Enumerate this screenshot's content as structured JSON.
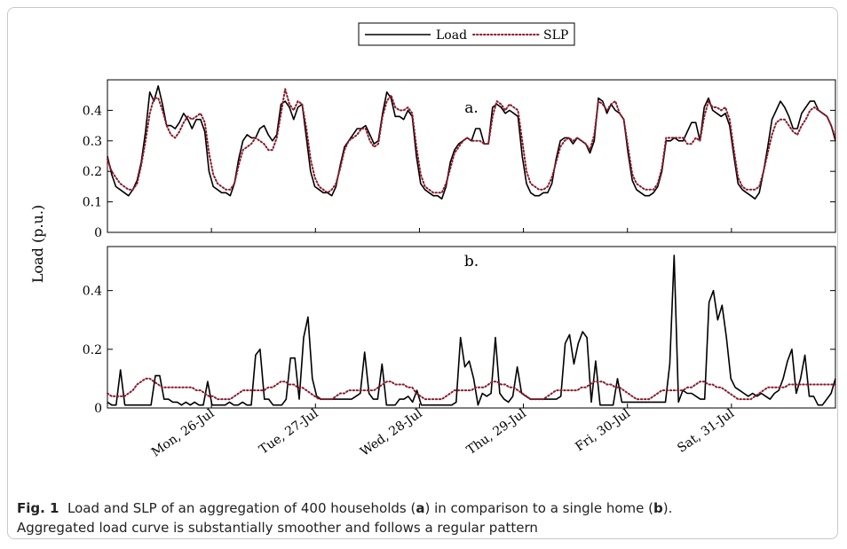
{
  "chart_data": [
    {
      "type": "line",
      "panel_label": "a.",
      "ylim": [
        0,
        0.5
      ],
      "yticks": [
        0,
        0.1,
        0.2,
        0.3,
        0.4
      ],
      "legend": {
        "placement": "top-center",
        "entries": [
          "Load",
          "SLP"
        ]
      },
      "series": [
        {
          "name": "Load",
          "style": "solid",
          "color": "#000000",
          "values": [
            0.25,
            0.19,
            0.15,
            0.14,
            0.13,
            0.12,
            0.14,
            0.17,
            0.23,
            0.33,
            0.46,
            0.43,
            0.48,
            0.42,
            0.35,
            0.35,
            0.34,
            0.36,
            0.39,
            0.37,
            0.34,
            0.37,
            0.37,
            0.33,
            0.2,
            0.15,
            0.14,
            0.13,
            0.13,
            0.12,
            0.16,
            0.24,
            0.3,
            0.32,
            0.31,
            0.31,
            0.34,
            0.35,
            0.32,
            0.3,
            0.32,
            0.42,
            0.43,
            0.41,
            0.37,
            0.41,
            0.42,
            0.31,
            0.2,
            0.15,
            0.14,
            0.13,
            0.13,
            0.12,
            0.15,
            0.22,
            0.28,
            0.3,
            0.32,
            0.34,
            0.34,
            0.35,
            0.32,
            0.29,
            0.3,
            0.39,
            0.46,
            0.44,
            0.38,
            0.38,
            0.37,
            0.4,
            0.38,
            0.25,
            0.16,
            0.14,
            0.13,
            0.12,
            0.12,
            0.11,
            0.15,
            0.23,
            0.27,
            0.29,
            0.3,
            0.31,
            0.3,
            0.34,
            0.34,
            0.29,
            0.29,
            0.41,
            0.42,
            0.41,
            0.39,
            0.4,
            0.39,
            0.38,
            0.25,
            0.16,
            0.13,
            0.12,
            0.12,
            0.13,
            0.13,
            0.16,
            0.24,
            0.3,
            0.31,
            0.31,
            0.29,
            0.31,
            0.3,
            0.29,
            0.26,
            0.3,
            0.44,
            0.43,
            0.39,
            0.42,
            0.4,
            0.39,
            0.37,
            0.26,
            0.17,
            0.14,
            0.13,
            0.12,
            0.12,
            0.13,
            0.15,
            0.2,
            0.3,
            0.3,
            0.31,
            0.3,
            0.3,
            0.33,
            0.36,
            0.36,
            0.3,
            0.41,
            0.44,
            0.4,
            0.39,
            0.38,
            0.39,
            0.35,
            0.25,
            0.16,
            0.14,
            0.13,
            0.12,
            0.11,
            0.13,
            0.2,
            0.28,
            0.37,
            0.4,
            0.43,
            0.41,
            0.38,
            0.34,
            0.34,
            0.39,
            0.41,
            0.43,
            0.43,
            0.4,
            0.39,
            0.38,
            0.35,
            0.3
          ]
        },
        {
          "name": "SLP",
          "style": "dotted",
          "color": "#8b1a2a",
          "values": [
            0.24,
            0.2,
            0.18,
            0.16,
            0.15,
            0.14,
            0.14,
            0.16,
            0.22,
            0.3,
            0.39,
            0.44,
            0.44,
            0.4,
            0.35,
            0.32,
            0.31,
            0.33,
            0.36,
            0.38,
            0.37,
            0.38,
            0.39,
            0.36,
            0.26,
            0.19,
            0.16,
            0.15,
            0.14,
            0.14,
            0.16,
            0.22,
            0.27,
            0.28,
            0.29,
            0.31,
            0.3,
            0.29,
            0.27,
            0.27,
            0.31,
            0.39,
            0.47,
            0.42,
            0.4,
            0.43,
            0.42,
            0.34,
            0.24,
            0.18,
            0.15,
            0.14,
            0.13,
            0.14,
            0.16,
            0.21,
            0.27,
            0.3,
            0.31,
            0.32,
            0.34,
            0.34,
            0.3,
            0.28,
            0.29,
            0.38,
            0.43,
            0.45,
            0.41,
            0.4,
            0.4,
            0.41,
            0.39,
            0.28,
            0.19,
            0.15,
            0.14,
            0.13,
            0.13,
            0.13,
            0.16,
            0.21,
            0.26,
            0.28,
            0.3,
            0.31,
            0.3,
            0.3,
            0.3,
            0.29,
            0.29,
            0.38,
            0.43,
            0.42,
            0.4,
            0.42,
            0.41,
            0.4,
            0.3,
            0.2,
            0.16,
            0.15,
            0.14,
            0.14,
            0.15,
            0.18,
            0.23,
            0.28,
            0.3,
            0.31,
            0.3,
            0.31,
            0.3,
            0.29,
            0.27,
            0.32,
            0.43,
            0.42,
            0.4,
            0.42,
            0.43,
            0.39,
            0.37,
            0.28,
            0.19,
            0.16,
            0.15,
            0.14,
            0.14,
            0.14,
            0.16,
            0.21,
            0.31,
            0.31,
            0.31,
            0.31,
            0.31,
            0.29,
            0.29,
            0.31,
            0.3,
            0.38,
            0.43,
            0.41,
            0.41,
            0.4,
            0.41,
            0.37,
            0.27,
            0.18,
            0.15,
            0.14,
            0.14,
            0.14,
            0.15,
            0.2,
            0.26,
            0.32,
            0.36,
            0.37,
            0.37,
            0.35,
            0.33,
            0.32,
            0.35,
            0.37,
            0.4,
            0.41,
            0.4,
            0.39,
            0.38,
            0.35,
            0.31
          ]
        }
      ]
    },
    {
      "type": "line",
      "panel_label": "b.",
      "ylim": [
        0,
        0.55
      ],
      "yticks": [
        0,
        0.2,
        0.4
      ],
      "ylabel": "Load (p.u.)",
      "xtick_labels": [
        "Mon, 26-Jul",
        "Tue, 27-Jul",
        "Wed, 28-Jul",
        "Thu, 29-Jul",
        "Fri, 30-Jul",
        "Sat, 31-Jul"
      ],
      "series": [
        {
          "name": "Load",
          "style": "solid",
          "color": "#000000",
          "values": [
            0.02,
            0.01,
            0.01,
            0.13,
            0.01,
            0.01,
            0.01,
            0.01,
            0.01,
            0.01,
            0.01,
            0.11,
            0.11,
            0.03,
            0.03,
            0.02,
            0.02,
            0.01,
            0.02,
            0.01,
            0.02,
            0.01,
            0.01,
            0.09,
            0.01,
            0.01,
            0.01,
            0.01,
            0.02,
            0.01,
            0.01,
            0.02,
            0.01,
            0.01,
            0.18,
            0.2,
            0.03,
            0.03,
            0.01,
            0.01,
            0.01,
            0.03,
            0.17,
            0.17,
            0.03,
            0.24,
            0.31,
            0.1,
            0.04,
            0.03,
            0.03,
            0.03,
            0.03,
            0.03,
            0.03,
            0.03,
            0.03,
            0.04,
            0.05,
            0.19,
            0.05,
            0.03,
            0.03,
            0.15,
            0.01,
            0.01,
            0.01,
            0.03,
            0.03,
            0.04,
            0.02,
            0.06,
            0.01,
            0.01,
            0.01,
            0.01,
            0.01,
            0.01,
            0.01,
            0.01,
            0.02,
            0.24,
            0.14,
            0.16,
            0.1,
            0.01,
            0.05,
            0.04,
            0.05,
            0.24,
            0.05,
            0.03,
            0.02,
            0.04,
            0.14,
            0.05,
            0.04,
            0.03,
            0.03,
            0.03,
            0.03,
            0.03,
            0.03,
            0.03,
            0.04,
            0.22,
            0.25,
            0.15,
            0.22,
            0.26,
            0.24,
            0.02,
            0.16,
            0.01,
            0.01,
            0.01,
            0.01,
            0.1,
            0.02,
            0.02,
            0.02,
            0.02,
            0.02,
            0.02,
            0.02,
            0.02,
            0.02,
            0.02,
            0.02,
            0.15,
            0.52,
            0.02,
            0.06,
            0.05,
            0.05,
            0.04,
            0.03,
            0.03,
            0.36,
            0.4,
            0.3,
            0.35,
            0.24,
            0.1,
            0.07,
            0.06,
            0.05,
            0.04,
            0.05,
            0.04,
            0.05,
            0.04,
            0.03,
            0.05,
            0.06,
            0.1,
            0.16,
            0.2,
            0.05,
            0.1,
            0.18,
            0.04,
            0.04,
            0.01,
            0.01,
            0.03,
            0.05,
            0.1
          ]
        },
        {
          "name": "SLP",
          "style": "dotted",
          "color": "#8b1a2a",
          "values": [
            0.05,
            0.04,
            0.04,
            0.04,
            0.04,
            0.05,
            0.06,
            0.08,
            0.09,
            0.1,
            0.1,
            0.09,
            0.08,
            0.07,
            0.07,
            0.07,
            0.07,
            0.07,
            0.07,
            0.07,
            0.07,
            0.06,
            0.06,
            0.05,
            0.04,
            0.04,
            0.03,
            0.03,
            0.03,
            0.03,
            0.04,
            0.05,
            0.06,
            0.06,
            0.06,
            0.06,
            0.06,
            0.06,
            0.07,
            0.07,
            0.08,
            0.09,
            0.09,
            0.08,
            0.08,
            0.07,
            0.07,
            0.06,
            0.05,
            0.04,
            0.03,
            0.03,
            0.03,
            0.03,
            0.04,
            0.05,
            0.05,
            0.06,
            0.06,
            0.06,
            0.06,
            0.06,
            0.06,
            0.06,
            0.07,
            0.08,
            0.09,
            0.09,
            0.08,
            0.08,
            0.08,
            0.07,
            0.07,
            0.05,
            0.04,
            0.03,
            0.03,
            0.03,
            0.03,
            0.03,
            0.04,
            0.05,
            0.06,
            0.06,
            0.06,
            0.06,
            0.06,
            0.07,
            0.07,
            0.07,
            0.08,
            0.09,
            0.09,
            0.08,
            0.08,
            0.07,
            0.07,
            0.06,
            0.05,
            0.04,
            0.03,
            0.03,
            0.03,
            0.03,
            0.04,
            0.05,
            0.06,
            0.06,
            0.06,
            0.06,
            0.06,
            0.06,
            0.07,
            0.07,
            0.08,
            0.09,
            0.09,
            0.09,
            0.08,
            0.08,
            0.07,
            0.07,
            0.06,
            0.05,
            0.04,
            0.03,
            0.03,
            0.03,
            0.03,
            0.04,
            0.05,
            0.06,
            0.06,
            0.06,
            0.06,
            0.06,
            0.06,
            0.07,
            0.07,
            0.08,
            0.09,
            0.09,
            0.08,
            0.08,
            0.07,
            0.07,
            0.06,
            0.05,
            0.04,
            0.03,
            0.03,
            0.03,
            0.03,
            0.04,
            0.05,
            0.06,
            0.07,
            0.07,
            0.07,
            0.07,
            0.07,
            0.08,
            0.08,
            0.08,
            0.08,
            0.08,
            0.08,
            0.08,
            0.08,
            0.08,
            0.08,
            0.08,
            0.08
          ]
        }
      ]
    }
  ],
  "caption": {
    "fig_label": "Fig. 1",
    "text_1": "  Load and SLP of an aggregation of 400 households (",
    "bold_a": "a",
    "text_2": ") in comparison to a single home (",
    "bold_b": "b",
    "text_3": ").",
    "line_2": "Aggregated load curve is substantially smoother and follows a regular pattern"
  }
}
